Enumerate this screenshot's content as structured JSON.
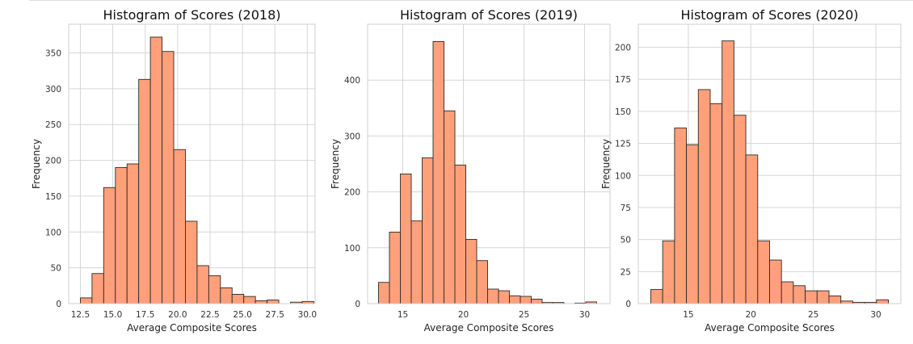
{
  "colors": {
    "bar_fill": "#FFA07A",
    "bar_edge": "#2b2b2b",
    "grid": "#d6d6d6",
    "background": "#ffffff"
  },
  "chart_data": [
    {
      "type": "bar",
      "title": "Histogram of Scores (2018)",
      "xlabel": "Average Composite Scores",
      "ylabel": "Frequency",
      "grid": true,
      "xlim": [
        11.6,
        30.6
      ],
      "ylim": [
        0,
        390
      ],
      "xticks": [
        12.5,
        15.0,
        17.5,
        20.0,
        22.5,
        25.0,
        27.5,
        30.0
      ],
      "xtick_labels": [
        "12.5",
        "15.0",
        "17.5",
        "20.0",
        "22.5",
        "25.0",
        "27.5",
        "30.0"
      ],
      "yticks": [
        0,
        50,
        100,
        150,
        200,
        250,
        300,
        350
      ],
      "bins": [
        12.5,
        13.4,
        14.3,
        15.2,
        16.1,
        17.0,
        17.9,
        18.8,
        19.7,
        20.6,
        21.5,
        22.4,
        23.3,
        24.2,
        25.1,
        26.0,
        26.9,
        27.8,
        28.7,
        29.6,
        30.5
      ],
      "counts": [
        8,
        42,
        162,
        190,
        195,
        313,
        372,
        352,
        215,
        115,
        53,
        39,
        22,
        13,
        10,
        4,
        5,
        0,
        2,
        3
      ]
    },
    {
      "type": "bar",
      "title": "Histogram of Scores (2019)",
      "xlabel": "Average Composite Scores",
      "ylabel": "Frequency",
      "grid": true,
      "xlim": [
        12.1,
        32.1
      ],
      "ylim": [
        0,
        500
      ],
      "xticks": [
        15,
        20,
        25,
        30
      ],
      "xtick_labels": [
        "15",
        "20",
        "25",
        "30"
      ],
      "yticks": [
        0,
        100,
        200,
        300,
        400
      ],
      "bins": [
        13.0,
        13.9,
        14.8,
        15.7,
        16.6,
        17.5,
        18.4,
        19.3,
        20.2,
        21.1,
        22.0,
        22.9,
        23.8,
        24.7,
        25.6,
        26.5,
        27.4,
        28.3,
        29.2,
        30.1,
        31.0
      ],
      "counts": [
        38,
        128,
        232,
        148,
        261,
        469,
        345,
        248,
        115,
        77,
        26,
        23,
        14,
        13,
        8,
        2,
        2,
        0,
        1,
        3
      ]
    },
    {
      "type": "bar",
      "title": "Histogram of Scores (2020)",
      "xlabel": "Average Composite Scores",
      "ylabel": "Frequency",
      "grid": true,
      "xlim": [
        11.0,
        32.0
      ],
      "ylim": [
        0,
        218
      ],
      "xticks": [
        15,
        20,
        25,
        30
      ],
      "xtick_labels": [
        "15",
        "20",
        "25",
        "30"
      ],
      "yticks": [
        0,
        25,
        50,
        75,
        100,
        125,
        150,
        175,
        200
      ],
      "bins": [
        12.0,
        12.95,
        13.9,
        14.85,
        15.8,
        16.75,
        17.7,
        18.65,
        19.6,
        20.55,
        21.5,
        22.45,
        23.4,
        24.35,
        25.3,
        26.25,
        27.2,
        28.15,
        29.1,
        30.05,
        31.0
      ],
      "counts": [
        11,
        49,
        137,
        124,
        167,
        156,
        205,
        147,
        116,
        49,
        34,
        17,
        14,
        10,
        10,
        6,
        2,
        1,
        1,
        3
      ]
    }
  ]
}
